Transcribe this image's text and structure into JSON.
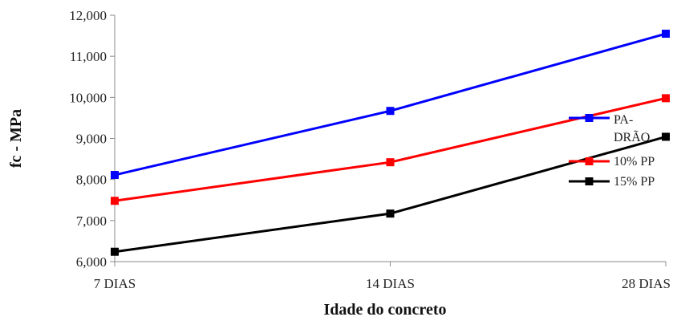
{
  "chart_data": {
    "type": "line",
    "title": "",
    "xlabel": "Idade do concreto",
    "ylabel": "fc - MPa",
    "categories": [
      "7 DIAS",
      "14 DIAS",
      "28 DIAS"
    ],
    "ylim": [
      6000,
      12000
    ],
    "yticks": [
      6000,
      7000,
      8000,
      9000,
      10000,
      11000,
      12000
    ],
    "ytick_labels": [
      "6,000",
      "7,000",
      "8,000",
      "9,000",
      "10,000",
      "11,000",
      "12,000"
    ],
    "grid": false,
    "legend_position": "right",
    "series": [
      {
        "name_lines": [
          "PA-",
          "DRÃO"
        ],
        "color": "#0000ff",
        "marker": "square",
        "values": [
          8110,
          9670,
          11550
        ]
      },
      {
        "name": "10% PP",
        "color": "#ff0000",
        "marker": "square",
        "values": [
          7480,
          8420,
          9980
        ]
      },
      {
        "name": "15% PP",
        "color": "#000000",
        "marker": "square",
        "values": [
          6240,
          7170,
          9040
        ]
      }
    ]
  }
}
